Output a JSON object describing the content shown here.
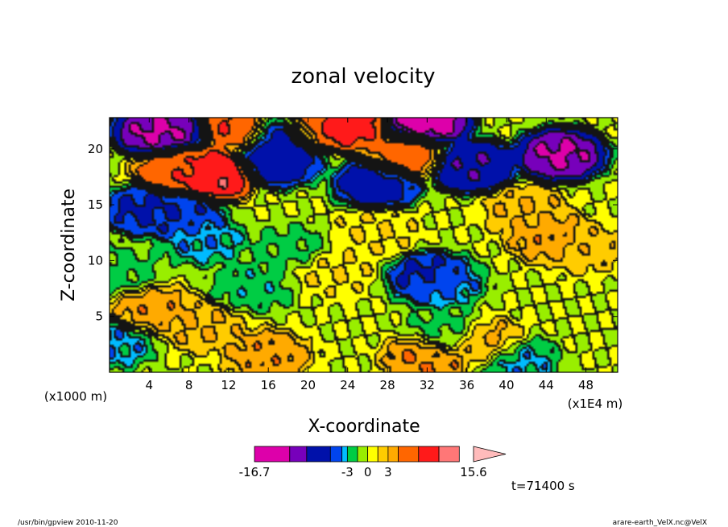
{
  "chart_data": {
    "type": "heatmap",
    "title": "zonal velocity",
    "xlabel": "X-coordinate",
    "ylabel": "Z-coordinate",
    "x_unit_label": "(x1E4 m)",
    "y_unit_label": "(x1000 m)",
    "xlim": [
      0,
      51.2
    ],
    "ylim": [
      0,
      22.8
    ],
    "x_ticks": [
      4,
      8,
      12,
      16,
      20,
      24,
      28,
      32,
      36,
      40,
      44,
      48
    ],
    "y_ticks": [
      5,
      10,
      15,
      20
    ],
    "grid": false,
    "colorbar": {
      "min": -16.7,
      "max": 15.6,
      "tick_labels": [
        "-16.7",
        "-3",
        "0",
        "3",
        "15.6"
      ],
      "tick_values": [
        -16.7,
        -3,
        0,
        3,
        15.6
      ],
      "colors": [
        "#dd00aa",
        "#7700bb",
        "#0011aa",
        "#0044ee",
        "#00bbff",
        "#00cc44",
        "#99ee00",
        "#ffff00",
        "#ffcc00",
        "#ffaa00",
        "#ff6600",
        "#ff1a1a",
        "#ff7777",
        "#ffbbbb"
      ],
      "bounds": [
        -16.7,
        -11.5,
        -9.0,
        -5.5,
        -3.8,
        -3.0,
        -1.5,
        0,
        1.5,
        3.0,
        4.5,
        7.5,
        10.5,
        13.5,
        15.6
      ]
    },
    "field_features": [
      {
        "x": 10.5,
        "z": 17.6,
        "value": 10.5
      },
      {
        "x": 7.0,
        "z": 18.0,
        "value": 7.0
      },
      {
        "x": 14.0,
        "z": 22.0,
        "value": 8.0
      },
      {
        "x": 20.0,
        "z": 22.2,
        "value": 7.0
      },
      {
        "x": 24.0,
        "z": 22.2,
        "value": 9.0
      },
      {
        "x": 30.0,
        "z": 19.3,
        "value": 6.0
      },
      {
        "x": 5.0,
        "z": 21.5,
        "value": -12.0
      },
      {
        "x": 17.0,
        "z": 21.5,
        "value": -10.0
      },
      {
        "x": 32.0,
        "z": 22.4,
        "value": -13.0
      },
      {
        "x": 45.5,
        "z": 19.4,
        "value": -12.0
      },
      {
        "x": 36.5,
        "z": 18.4,
        "value": -9.0
      },
      {
        "x": 17.0,
        "z": 18.8,
        "value": -7.0
      },
      {
        "x": 27.0,
        "z": 16.8,
        "value": -7.0
      },
      {
        "x": 3.8,
        "z": 14.5,
        "value": -6.0
      },
      {
        "x": 7.2,
        "z": 14.0,
        "value": -5.5
      },
      {
        "x": 9.5,
        "z": 11.8,
        "value": -3.5
      },
      {
        "x": 32.5,
        "z": 8.4,
        "value": -6.5
      },
      {
        "x": 33.5,
        "z": 7.8,
        "value": -3.5
      },
      {
        "x": 18.5,
        "z": 11.0,
        "value": -2.0
      },
      {
        "x": 1.2,
        "z": 9.0,
        "value": -2.0
      },
      {
        "x": 42.0,
        "z": 14.5,
        "value": 3.0
      },
      {
        "x": 44.5,
        "z": 12.0,
        "value": 4.0
      },
      {
        "x": 48.0,
        "z": 11.0,
        "value": 2.5
      },
      {
        "x": 4.5,
        "z": 5.5,
        "value": 4.0
      },
      {
        "x": 9.5,
        "z": 4.0,
        "value": 3.0
      },
      {
        "x": 38.0,
        "z": 2.5,
        "value": 3.5
      },
      {
        "x": 32.0,
        "z": 1.2,
        "value": 4.5
      },
      {
        "x": 16.0,
        "z": 1.5,
        "value": 4.0
      },
      {
        "x": 22.5,
        "z": 9.0,
        "value": 1.5
      },
      {
        "x": 27.0,
        "z": 12.5,
        "value": 1.5
      },
      {
        "x": 34.0,
        "z": 3.5,
        "value": -2.0
      },
      {
        "x": 14.5,
        "z": 7.5,
        "value": -2.5
      },
      {
        "x": 0.5,
        "z": 2.5,
        "value": -3.5
      },
      {
        "x": 41.0,
        "z": 1.0,
        "value": -3.5
      }
    ]
  },
  "annotations": {
    "time_label": "t=71400 s",
    "footer_left": "/usr/bin/gpview  2010-11-20",
    "footer_right": "arare-earth_VelX.nc@VelX"
  }
}
